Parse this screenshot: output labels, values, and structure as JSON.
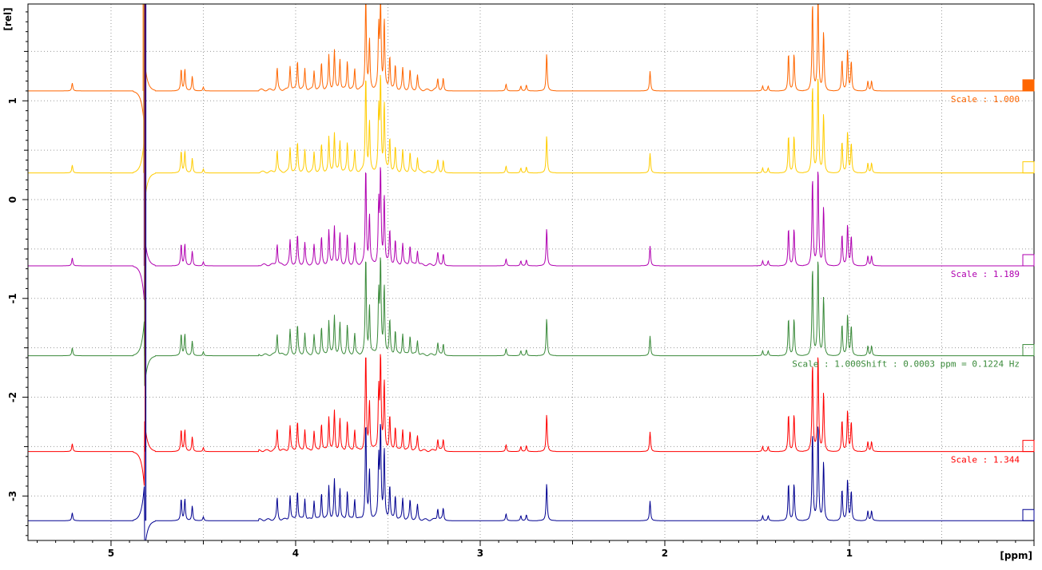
{
  "chart_data": {
    "type": "line",
    "title": "",
    "xlabel": "[ppm]",
    "ylabel": "[rel]",
    "xlim": [
      5.45,
      0.0
    ],
    "ylim": [
      -3.45,
      1.98
    ],
    "x_reversed": true,
    "grid": true,
    "x_ticks": [
      5,
      4,
      3,
      2,
      1
    ],
    "x_tick_labels": [
      "5",
      "4",
      "3",
      "2",
      "1"
    ],
    "y_ticks": [
      1,
      0,
      -1,
      -2,
      -3
    ],
    "y_tick_labels": [
      "1",
      "0",
      "-1",
      "-2",
      "-3"
    ],
    "series": [
      {
        "color": "#ff6600",
        "baseline": 1.1,
        "annotation": "Scale : 1.000",
        "marker_filled": true
      },
      {
        "color": "#ffcc00",
        "baseline": 0.27,
        "annotation": "",
        "marker_filled": false
      },
      {
        "color": "#b000b0",
        "baseline": -0.67,
        "annotation": "Scale : 1.189",
        "marker_filled": false
      },
      {
        "color": "#3a8a3a",
        "baseline": -1.58,
        "annotation": "Scale : 1.000Shift : 0.0003 ppm = 0.1224 Hz",
        "marker_filled": false
      },
      {
        "color": "#ff0000",
        "baseline": -2.55,
        "annotation": "Scale : 1.344",
        "marker_filled": false
      },
      {
        "color": "#000090",
        "baseline": -3.25,
        "annotation": "",
        "marker_filled": false
      }
    ],
    "peaks": [
      {
        "ppm": 5.21,
        "h": 0.08
      },
      {
        "ppm": 4.62,
        "h": 0.22
      },
      {
        "ppm": 4.6,
        "h": 0.22
      },
      {
        "ppm": 4.56,
        "h": 0.15
      },
      {
        "ppm": 4.5,
        "h": 0.04
      },
      {
        "ppm": 4.1,
        "h": 0.22
      },
      {
        "ppm": 4.03,
        "h": 0.25
      },
      {
        "ppm": 3.99,
        "h": 0.3
      },
      {
        "ppm": 3.95,
        "h": 0.22
      },
      {
        "ppm": 3.9,
        "h": 0.2
      },
      {
        "ppm": 3.86,
        "h": 0.28
      },
      {
        "ppm": 3.82,
        "h": 0.35
      },
      {
        "ppm": 3.79,
        "h": 0.4
      },
      {
        "ppm": 3.76,
        "h": 0.32
      },
      {
        "ppm": 3.72,
        "h": 0.3
      },
      {
        "ppm": 3.68,
        "h": 0.22
      },
      {
        "ppm": 3.62,
        "h": 1.0
      },
      {
        "ppm": 3.6,
        "h": 0.5
      },
      {
        "ppm": 3.55,
        "h": 0.6
      },
      {
        "ppm": 3.54,
        "h": 0.95
      },
      {
        "ppm": 3.52,
        "h": 0.7
      },
      {
        "ppm": 3.49,
        "h": 0.35
      },
      {
        "ppm": 3.46,
        "h": 0.25
      },
      {
        "ppm": 3.42,
        "h": 0.22
      },
      {
        "ppm": 3.38,
        "h": 0.2
      },
      {
        "ppm": 3.34,
        "h": 0.15
      },
      {
        "ppm": 3.23,
        "h": 0.12
      },
      {
        "ppm": 3.2,
        "h": 0.12
      },
      {
        "ppm": 2.86,
        "h": 0.07
      },
      {
        "ppm": 2.78,
        "h": 0.05
      },
      {
        "ppm": 2.75,
        "h": 0.06
      },
      {
        "ppm": 2.64,
        "h": 0.38
      },
      {
        "ppm": 2.08,
        "h": 0.2
      },
      {
        "ppm": 1.47,
        "h": 0.05
      },
      {
        "ppm": 1.44,
        "h": 0.05
      },
      {
        "ppm": 1.33,
        "h": 0.38
      },
      {
        "ppm": 1.3,
        "h": 0.38
      },
      {
        "ppm": 1.2,
        "h": 0.9
      },
      {
        "ppm": 1.17,
        "h": 1.0
      },
      {
        "ppm": 1.14,
        "h": 0.6
      },
      {
        "ppm": 1.04,
        "h": 0.32
      },
      {
        "ppm": 1.01,
        "h": 0.42
      },
      {
        "ppm": 0.99,
        "h": 0.3
      },
      {
        "ppm": 0.9,
        "h": 0.1
      },
      {
        "ppm": 0.88,
        "h": 0.1
      }
    ],
    "water_ppm": 4.82
  }
}
